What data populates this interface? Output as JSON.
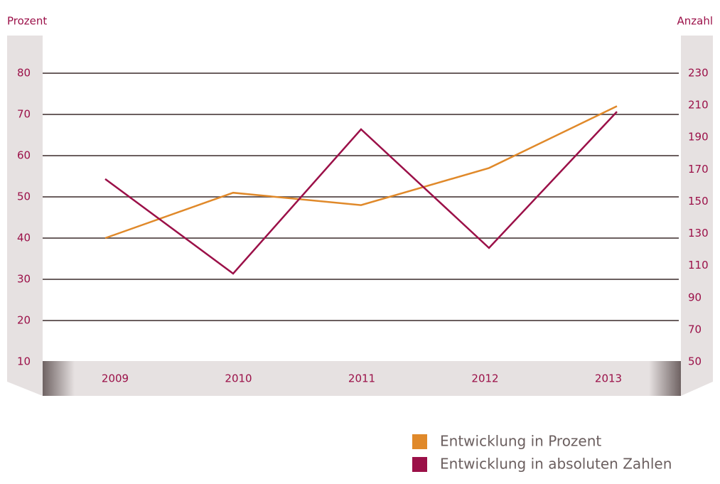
{
  "chart_data": {
    "type": "line",
    "y_label": "Prozent",
    "y2_label": "Anzahl",
    "categories": [
      "2009",
      "2010",
      "2011",
      "2012",
      "2013"
    ],
    "series": [
      {
        "name": "Entwicklung in Prozent",
        "color": "#e0892a",
        "values": [
          40,
          51,
          48,
          57,
          72
        ]
      },
      {
        "name": "Entwicklung in absoluten Zahlen",
        "color": "#9b1048",
        "axis": "y2",
        "values": [
          164,
          105,
          195,
          121,
          206
        ]
      }
    ],
    "ylim": [
      10,
      80
    ],
    "yticks": [
      10,
      20,
      30,
      40,
      50,
      60,
      70,
      80
    ],
    "y2lim": [
      50,
      230
    ],
    "y2ticks": [
      50,
      70,
      90,
      110,
      130,
      150,
      170,
      190,
      210,
      230
    ],
    "grid": true,
    "legend": "bottom-right"
  }
}
